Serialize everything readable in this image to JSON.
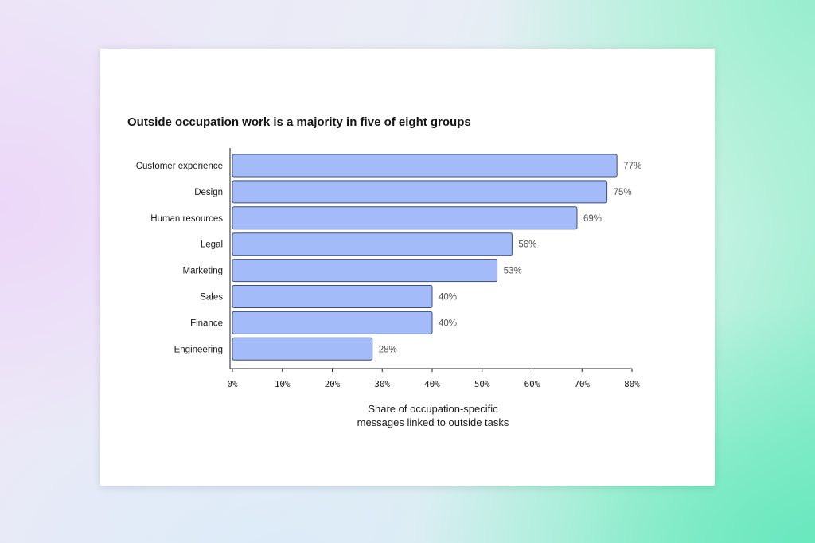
{
  "chart_data": {
    "type": "bar",
    "orientation": "horizontal",
    "title": "Outside occupation work is a majority in five of eight groups",
    "categories": [
      "Customer experience",
      "Design",
      "Human resources",
      "Legal",
      "Marketing",
      "Sales",
      "Finance",
      "Engineering"
    ],
    "values": [
      77,
      75,
      69,
      56,
      53,
      40,
      40,
      28
    ],
    "value_labels": [
      "77%",
      "75%",
      "69%",
      "56%",
      "53%",
      "40%",
      "40%",
      "28%"
    ],
    "xlabel_lines": [
      "Share of occupation-specific",
      "messages linked to outside tasks"
    ],
    "ylabel": "",
    "xlim": [
      0,
      80
    ],
    "xticks": [
      0,
      10,
      20,
      30,
      40,
      50,
      60,
      70,
      80
    ],
    "xtick_labels": [
      "0%",
      "10%",
      "20%",
      "30%",
      "40%",
      "50%",
      "60%",
      "70%",
      "80%"
    ],
    "grid": false,
    "legend": "none",
    "colors": {
      "bar_fill": "#a3bbf8",
      "bar_stroke": "#3d4f78",
      "axis": "#222222"
    }
  }
}
